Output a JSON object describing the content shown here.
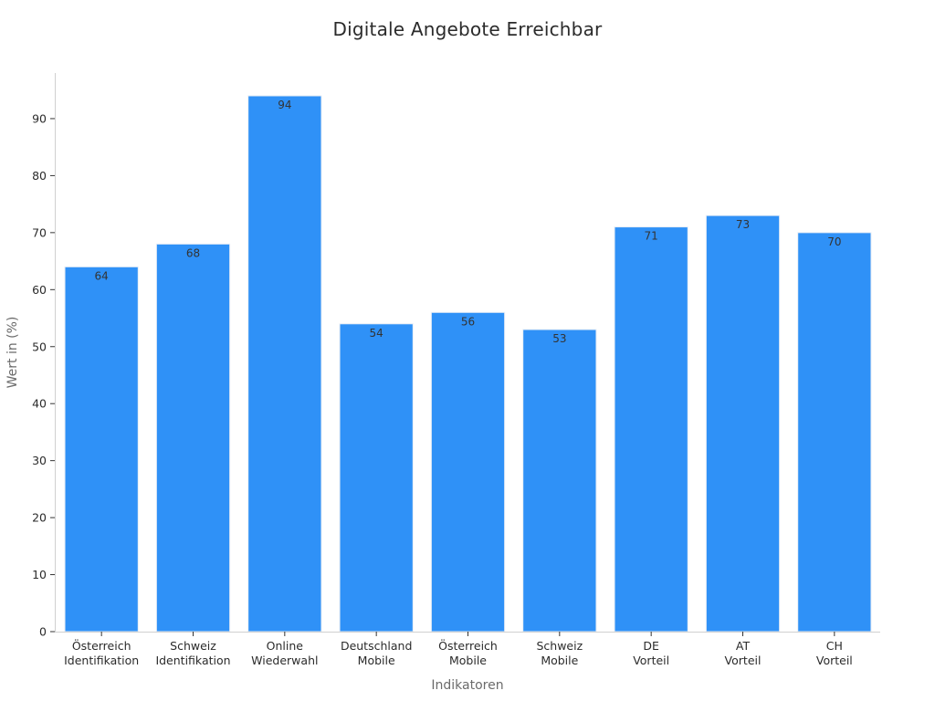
{
  "chart_data": {
    "type": "bar",
    "title": "Digitale Angebote Erreichbar",
    "xlabel": "Indikatoren",
    "ylabel": "Wert in (%)",
    "ylim": [
      0,
      98
    ],
    "yticks": [
      0,
      10,
      20,
      30,
      40,
      50,
      60,
      70,
      80,
      90
    ],
    "grid": false,
    "bar_color": "#2f91f7",
    "categories": [
      [
        "Österreich",
        "Identifikation"
      ],
      [
        "Schweiz",
        "Identifikation"
      ],
      [
        "Online",
        "Wiederwahl"
      ],
      [
        "Deutschland",
        "Mobile"
      ],
      [
        "Österreich",
        "Mobile"
      ],
      [
        "Schweiz",
        "Mobile"
      ],
      [
        "DE",
        "Vorteil"
      ],
      [
        "AT",
        "Vorteil"
      ],
      [
        "CH",
        "Vorteil"
      ]
    ],
    "values": [
      64,
      68,
      94,
      54,
      56,
      53,
      71,
      73,
      70
    ]
  }
}
